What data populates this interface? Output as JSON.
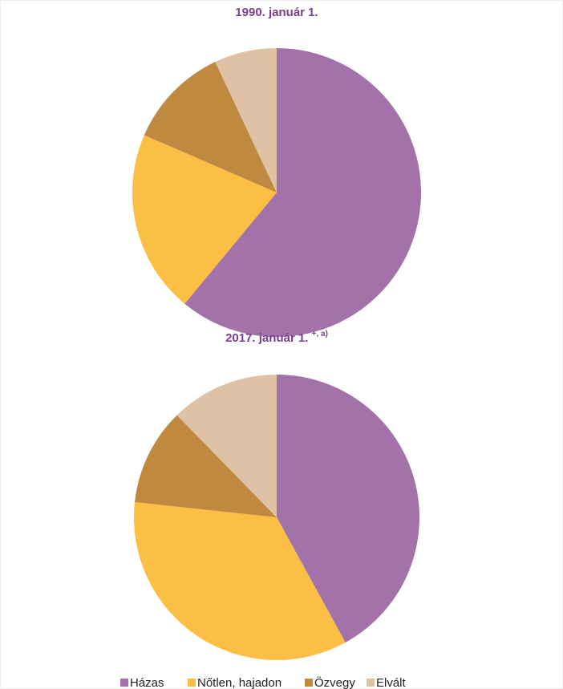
{
  "chart_data": [
    {
      "type": "pie",
      "title": "1990. január 1.",
      "values": [
        61,
        20.5,
        11.5,
        7
      ]
    },
    {
      "type": "pie",
      "title": "2017. január 1.",
      "title_note": "+, a)",
      "values": [
        42,
        34.7,
        11,
        12.3
      ]
    }
  ],
  "legend": {
    "labels": [
      "Házas",
      "Nőtlen, hajadon",
      "Özvegy",
      "Elvált"
    ],
    "colors": [
      "#a272a8",
      "#fbbf45",
      "#bf8a40",
      "#dfc2a6"
    ]
  }
}
